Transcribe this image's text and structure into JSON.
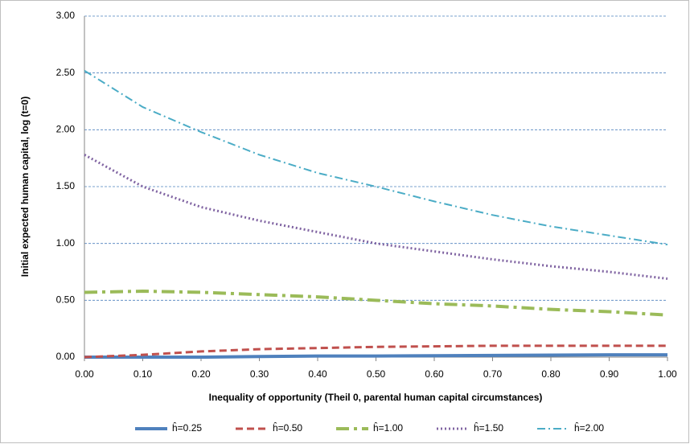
{
  "chart_data": {
    "type": "line",
    "ylabel": "Initial expected human capital,  log (t=0)",
    "xlabel": "Inequality of opportunity (Theil 0, parental human capital circumstances)",
    "x": [
      0,
      0.1,
      0.2,
      0.3,
      0.4,
      0.5,
      0.6,
      0.7,
      0.8,
      0.9,
      1.0
    ],
    "xlim": [
      0,
      1
    ],
    "xticks": [
      {
        "value": 0,
        "label": "0.00"
      },
      {
        "value": 0.1,
        "label": "0.10"
      },
      {
        "value": 0.2,
        "label": "0.20"
      },
      {
        "value": 0.3,
        "label": "0.30"
      },
      {
        "value": 0.4,
        "label": "0.40"
      },
      {
        "value": 0.5,
        "label": "0.50"
      },
      {
        "value": 0.6,
        "label": "0.60"
      },
      {
        "value": 0.7,
        "label": "0.70"
      },
      {
        "value": 0.8,
        "label": "0.80"
      },
      {
        "value": 0.9,
        "label": "0.90"
      },
      {
        "value": 1,
        "label": "1.00"
      }
    ],
    "ylim": [
      0,
      3
    ],
    "yticks": [
      {
        "value": 0,
        "label": "0.00"
      },
      {
        "value": 0.5,
        "label": "0.50"
      },
      {
        "value": 1,
        "label": "1.00"
      },
      {
        "value": 1.5,
        "label": "1.50"
      },
      {
        "value": 2,
        "label": "2.00"
      },
      {
        "value": 2.5,
        "label": "2.50"
      },
      {
        "value": 3,
        "label": "3.00"
      }
    ],
    "grid": true,
    "legend": "bottom",
    "series": [
      {
        "name": "ĥ=0.25",
        "color": "#4f81bd",
        "line_style": "solid",
        "values": [
          0.0,
          0.0,
          0.0,
          0.005,
          0.01,
          0.01,
          0.012,
          0.015,
          0.018,
          0.02,
          0.02
        ]
      },
      {
        "name": "ĥ=0.50",
        "color": "#c0504d",
        "line_style": "dashed",
        "values": [
          0.0,
          0.02,
          0.05,
          0.07,
          0.08,
          0.09,
          0.095,
          0.1,
          0.1,
          0.1,
          0.1
        ]
      },
      {
        "name": "ĥ=1.00",
        "color": "#9bbb59",
        "line_style": "long-dash-dot",
        "values": [
          0.57,
          0.58,
          0.57,
          0.55,
          0.53,
          0.5,
          0.47,
          0.45,
          0.42,
          0.4,
          0.37
        ]
      },
      {
        "name": "ĥ=1.50",
        "color": "#8064a2",
        "line_style": "dotted",
        "values": [
          1.78,
          1.5,
          1.32,
          1.2,
          1.1,
          1.0,
          0.93,
          0.86,
          0.8,
          0.75,
          0.69
        ]
      },
      {
        "name": "ĥ=2.00",
        "color": "#4bacc6",
        "line_style": "dash-dot",
        "values": [
          2.52,
          2.2,
          1.98,
          1.78,
          1.62,
          1.5,
          1.37,
          1.25,
          1.15,
          1.07,
          0.99
        ]
      }
    ]
  }
}
